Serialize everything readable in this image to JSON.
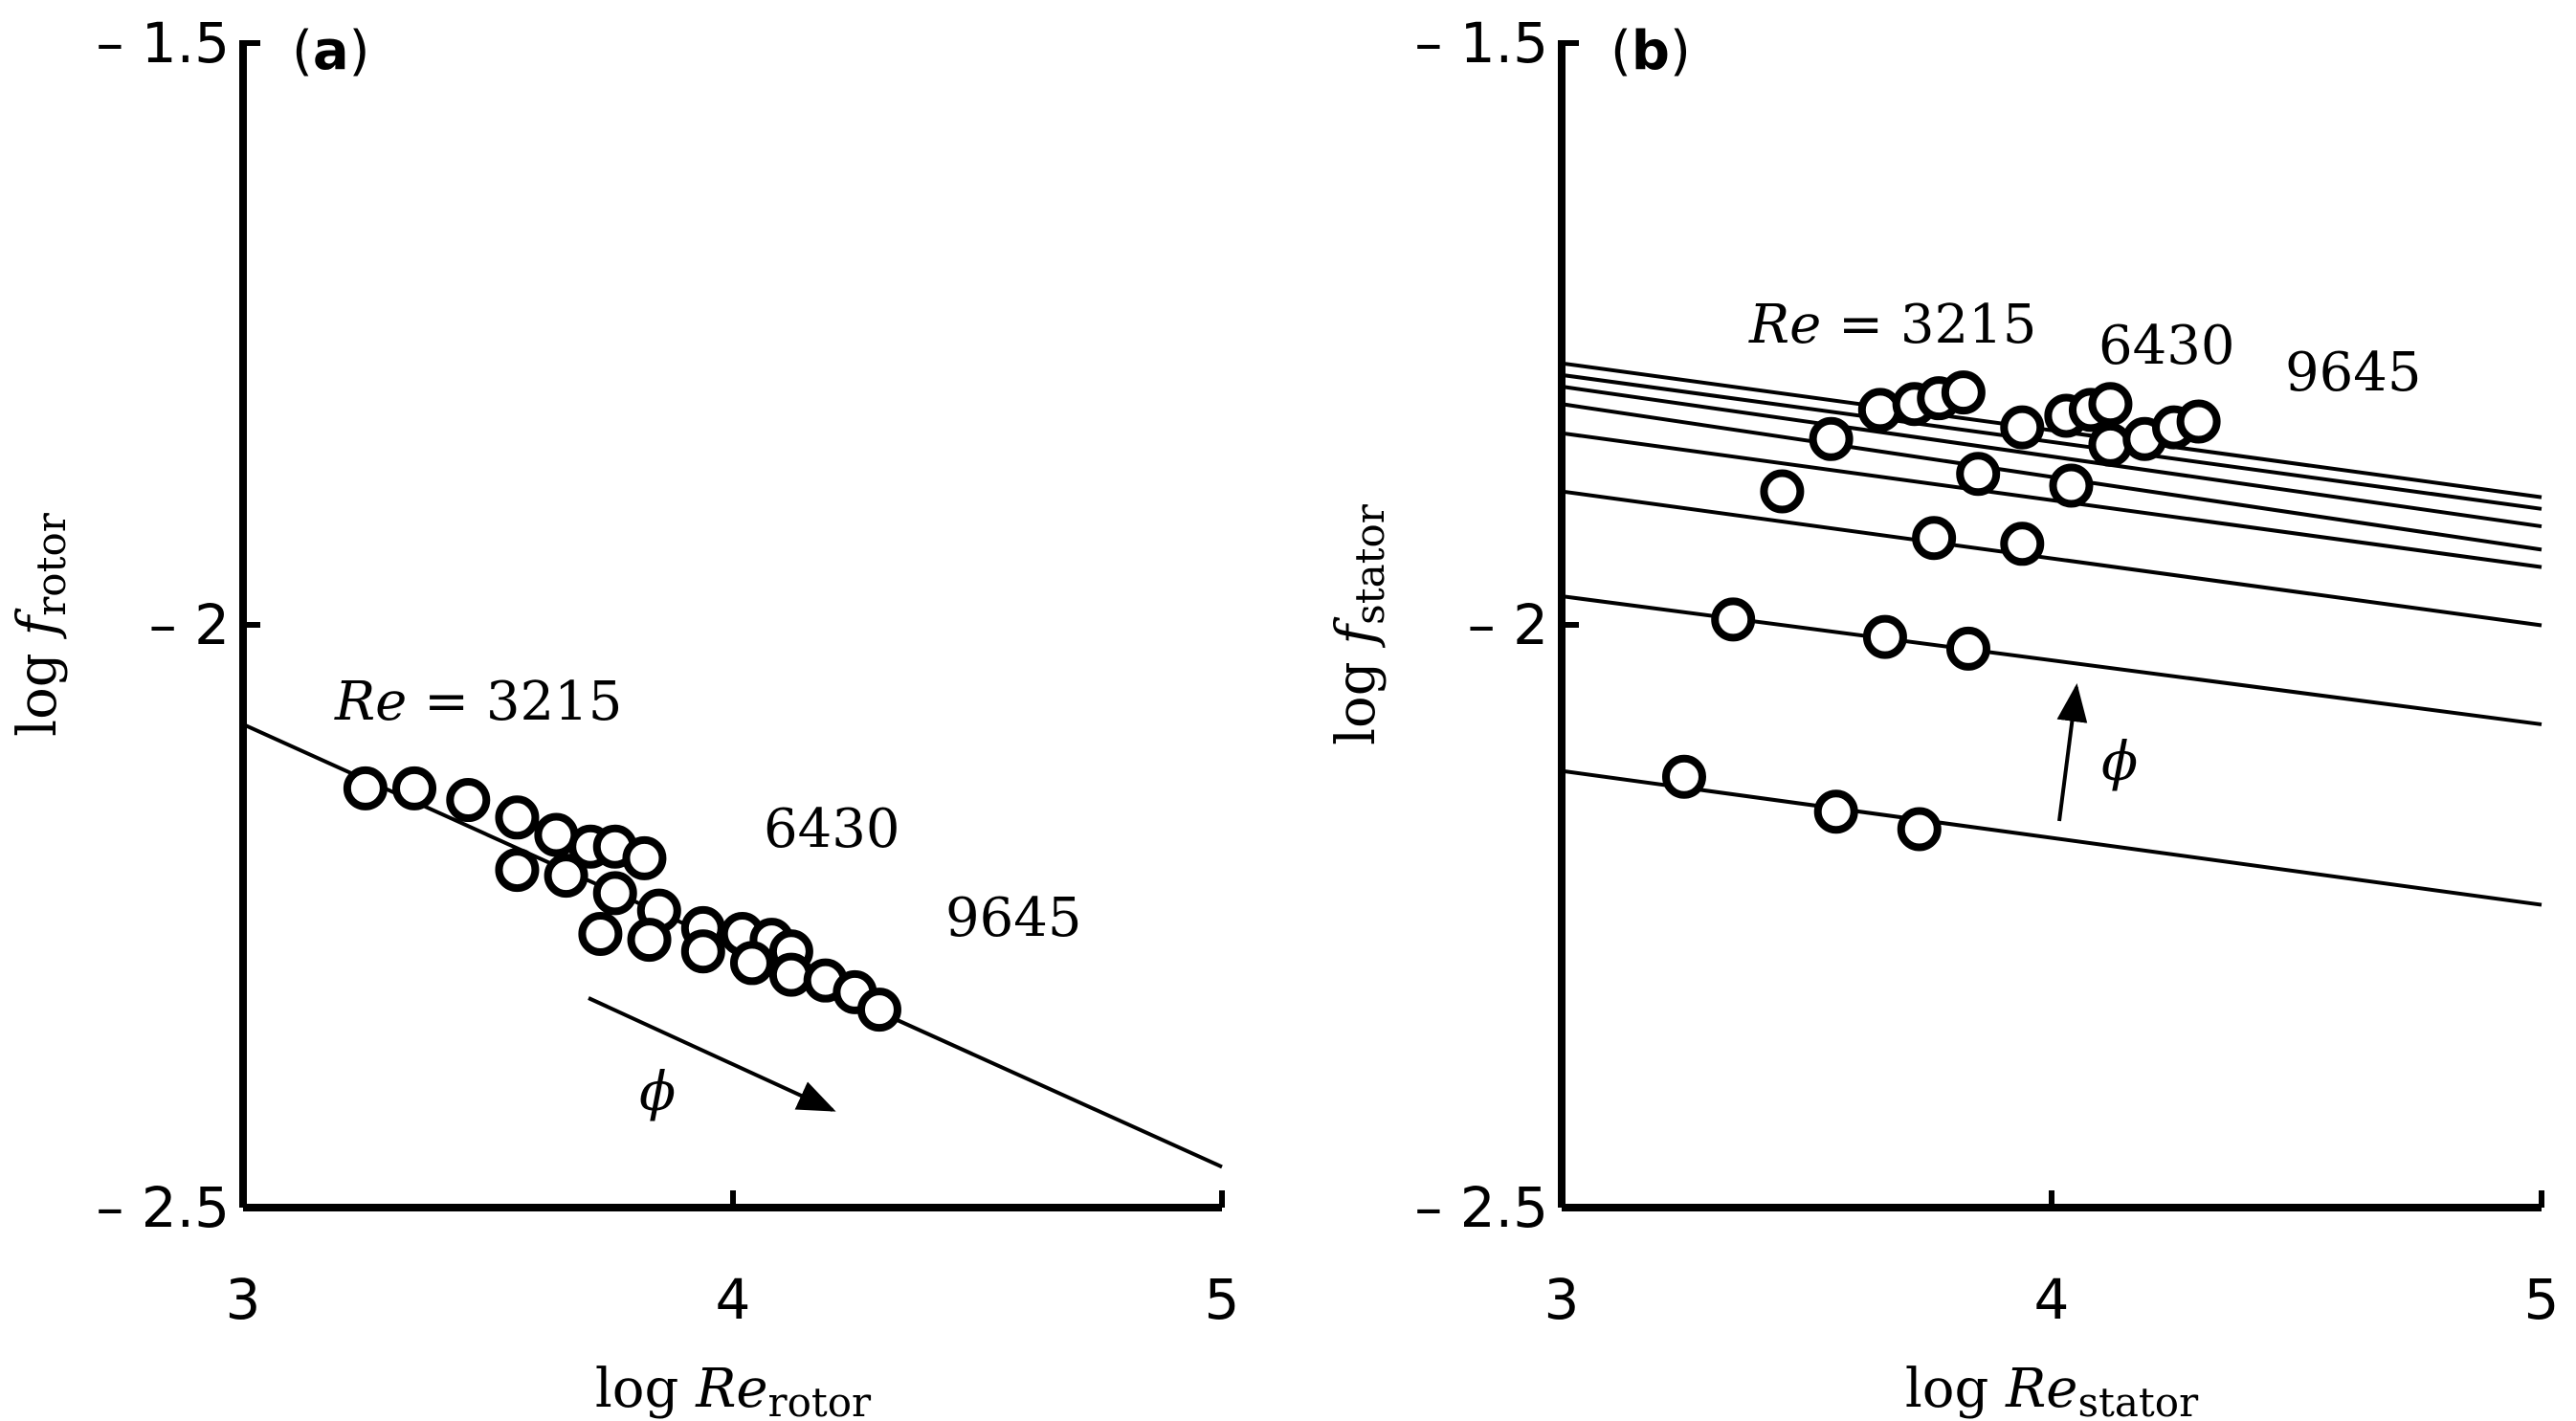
{
  "chart_data": [
    {
      "panel": "(a)",
      "panel_letter": "a",
      "type": "scatter",
      "xlim": [
        3,
        5
      ],
      "ylim": [
        -2.5,
        -1.5
      ],
      "x_ticks": [
        3,
        4,
        5
      ],
      "x_tick_labels": [
        "3",
        "4",
        "5"
      ],
      "y_ticks": [
        -1.5,
        -2,
        -2.5
      ],
      "y_tick_labels": [
        "– 1.5",
        "– 2",
        "– 2.5"
      ],
      "xlabel": {
        "prefix": "log",
        "var": "Re",
        "sub": "rotor"
      },
      "ylabel": {
        "prefix": "log",
        "var": "f",
        "sub": "rotor"
      },
      "annotations": {
        "re_var": "Re",
        "re_eq": " = 3215",
        "re2": "6430",
        "re3": "9645",
        "arrow_label": "ϕ"
      },
      "fit_lines": [
        {
          "x": [
            3.0,
            5.0
          ],
          "y": [
            -2.085,
            -2.465
          ]
        }
      ],
      "series": [
        {
          "name": "Re = 3215",
          "x": [
            3.25,
            3.35,
            3.46,
            3.56,
            3.64,
            3.71,
            3.76,
            3.82
          ],
          "y": [
            -2.14,
            -2.14,
            -2.15,
            -2.165,
            -2.18,
            -2.19,
            -2.19,
            -2.2
          ]
        },
        {
          "name": "Re = 6430",
          "x": [
            3.56,
            3.66,
            3.76,
            3.85,
            3.94,
            4.02,
            4.08,
            4.12
          ],
          "y": [
            -2.21,
            -2.215,
            -2.23,
            -2.245,
            -2.26,
            -2.265,
            -2.27,
            -2.28
          ]
        },
        {
          "name": "Re = 9645",
          "x": [
            3.73,
            3.83,
            3.94,
            4.04,
            4.12,
            4.19,
            4.25,
            4.3
          ],
          "y": [
            -2.265,
            -2.27,
            -2.28,
            -2.29,
            -2.3,
            -2.305,
            -2.315,
            -2.33
          ]
        }
      ]
    },
    {
      "panel": "(b)",
      "panel_letter": "b",
      "type": "scatter",
      "xlim": [
        3,
        5
      ],
      "ylim": [
        -2.5,
        -1.5
      ],
      "x_ticks": [
        3,
        4,
        5
      ],
      "x_tick_labels": [
        "3",
        "4",
        "5"
      ],
      "y_ticks": [
        -1.5,
        -2,
        -2.5
      ],
      "y_tick_labels": [
        "– 1.5",
        "– 2",
        "– 2.5"
      ],
      "xlabel": {
        "prefix": "log",
        "var": "Re",
        "sub": "stator"
      },
      "ylabel": {
        "prefix": "log",
        "var": "f",
        "sub": "stator"
      },
      "annotations": {
        "re_var": "Re",
        "re_eq": " = 3215",
        "re2": "6430",
        "re3": "9645",
        "arrow_label": "ϕ"
      },
      "fit_lines": [
        {
          "x": [
            3.0,
            5.0
          ],
          "y": [
            -1.775,
            -1.89
          ]
        },
        {
          "x": [
            3.0,
            5.0
          ],
          "y": [
            -1.785,
            -1.9
          ]
        },
        {
          "x": [
            3.0,
            5.0
          ],
          "y": [
            -1.795,
            -1.915
          ]
        },
        {
          "x": [
            3.0,
            5.0
          ],
          "y": [
            -1.81,
            -1.935
          ]
        },
        {
          "x": [
            3.0,
            5.0
          ],
          "y": [
            -1.835,
            -1.95
          ]
        },
        {
          "x": [
            3.0,
            5.0
          ],
          "y": [
            -1.885,
            -2.0
          ]
        },
        {
          "x": [
            3.0,
            5.0
          ],
          "y": [
            -1.975,
            -2.085
          ]
        },
        {
          "x": [
            3.0,
            5.0
          ],
          "y": [
            -2.125,
            -2.24
          ]
        }
      ],
      "series": [
        {
          "name": "Re = 3215",
          "x": [
            3.25,
            3.35,
            3.45,
            3.55,
            3.65,
            3.72,
            3.77,
            3.82
          ],
          "y": [
            -2.13,
            -1.995,
            -1.885,
            -1.84,
            -1.815,
            -1.81,
            -1.805,
            -1.8
          ]
        },
        {
          "name": "Re = 6430",
          "x": [
            3.56,
            3.66,
            3.76,
            3.85,
            3.94,
            4.03,
            4.08,
            4.12
          ],
          "y": [
            -2.16,
            -2.01,
            -1.925,
            -1.87,
            -1.83,
            -1.82,
            -1.815,
            -1.81
          ]
        },
        {
          "name": "Re = 9645",
          "x": [
            3.73,
            3.83,
            3.94,
            4.04,
            4.12,
            4.19,
            4.25,
            4.3
          ],
          "y": [
            -2.175,
            -2.02,
            -1.93,
            -1.88,
            -1.845,
            -1.84,
            -1.83,
            -1.825
          ]
        }
      ]
    }
  ]
}
